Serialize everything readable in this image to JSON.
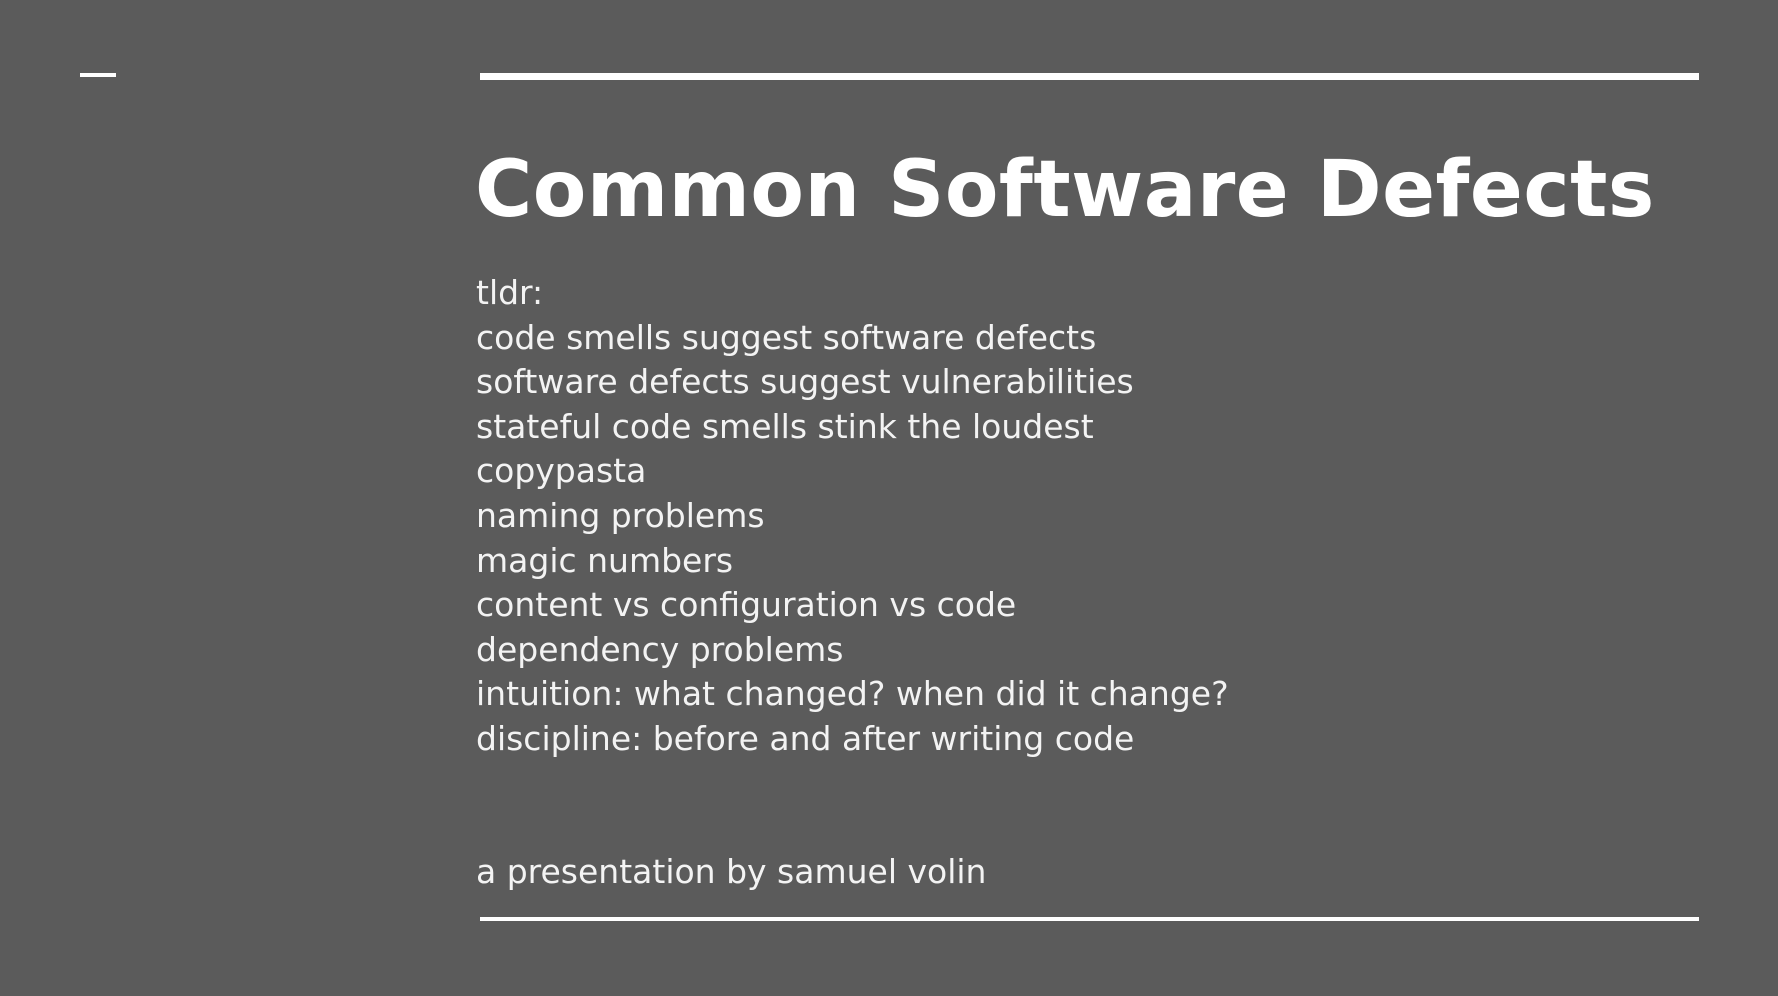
{
  "slide": {
    "title": "Common Software Defects",
    "body_lines": [
      "tldr:",
      "code smells suggest software defects",
      "software defects suggest vulnerabilities",
      "stateful code smells stink the loudest",
      "copypasta",
      "naming problems",
      "magic numbers",
      "content vs configuration vs code",
      "dependency problems",
      "intuition: what changed? when did it change?",
      "discipline: before and after writing code"
    ],
    "byline": "a presentation by samuel volin"
  },
  "colors": {
    "background": "#5b5b5b",
    "text": "#ffffff"
  }
}
